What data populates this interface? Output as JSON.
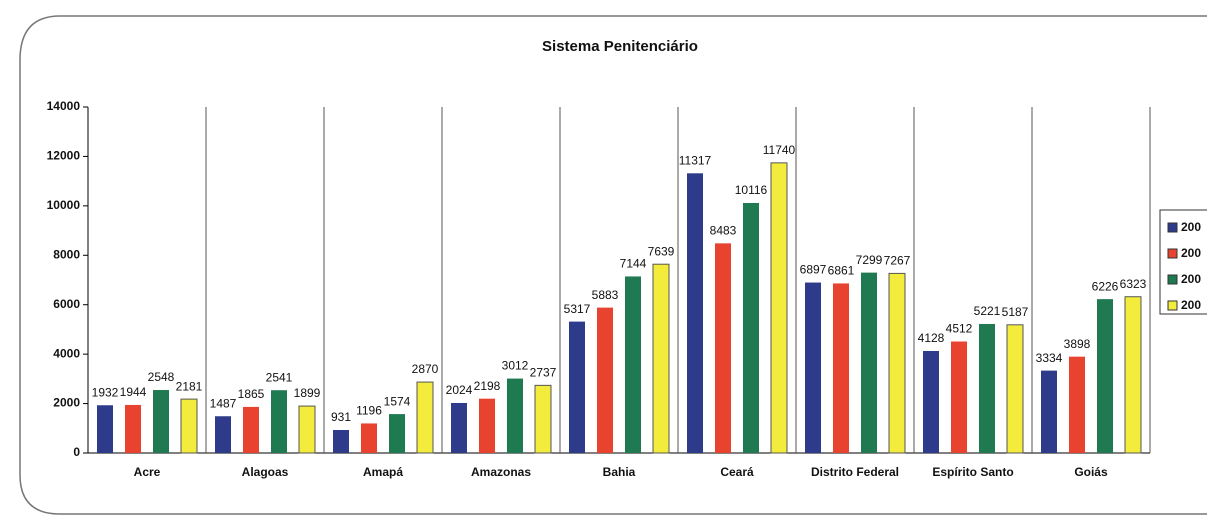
{
  "chart_data": {
    "type": "bar",
    "title": "Sistema Penitenciário",
    "categories": [
      "Acre",
      "Alagoas",
      "Amapá",
      "Amazonas",
      "Bahia",
      "Ceará",
      "Distrito Federal",
      "Espírito Santo",
      "Goiás"
    ],
    "series": [
      {
        "name": "200",
        "color": "#2e3a8a",
        "values": [
          1932,
          1487,
          931,
          2024,
          5317,
          11317,
          6897,
          4128,
          3334
        ]
      },
      {
        "name": "200",
        "color": "#e8432e",
        "values": [
          1944,
          1865,
          1196,
          2198,
          5883,
          8483,
          6861,
          4512,
          3898
        ]
      },
      {
        "name": "200",
        "color": "#1f7a52",
        "values": [
          2548,
          2541,
          1574,
          3012,
          7144,
          10116,
          7299,
          5221,
          6226
        ]
      },
      {
        "name": "200",
        "color": "#f3ec3c",
        "values": [
          2181,
          1899,
          2870,
          2737,
          7639,
          11740,
          7267,
          5187,
          6323
        ]
      }
    ],
    "ylim": [
      0,
      14000
    ],
    "yticks": [
      0,
      2000,
      4000,
      6000,
      8000,
      10000,
      12000,
      14000
    ],
    "grid": false,
    "legend": "right"
  }
}
